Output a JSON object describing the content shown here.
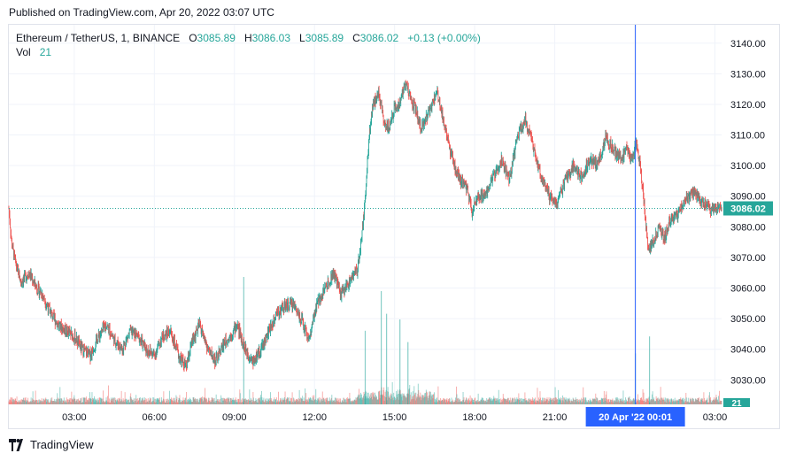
{
  "header": {
    "published": "Published on TradingView.com, Apr 20, 2022 03:07 UTC"
  },
  "legend": {
    "symbol": "Ethereum / TetherUS, 1, BINANCE",
    "o_label": "O",
    "o_value": "3085.89",
    "h_label": "H",
    "h_value": "3086.03",
    "l_label": "L",
    "l_value": "3085.89",
    "c_label": "C",
    "c_value": "3086.02",
    "change": "+0.13 (+0.00%)",
    "vol_label": "Vol",
    "vol_value": "21"
  },
  "footer": {
    "brand": "TradingView"
  },
  "colors": {
    "up": "#26a69a",
    "down": "#ef5350",
    "crosshair": "#2962ff",
    "grid": "#f0f3fa",
    "axis_text": "#131722"
  },
  "chart_data": {
    "type": "candlestick",
    "symbol": "ETHUSDT",
    "interval": "1",
    "exchange": "BINANCE",
    "y_ticks": [
      3030,
      3040,
      3050,
      3060,
      3070,
      3080,
      3090,
      3100,
      3110,
      3120,
      3130,
      3140
    ],
    "y_tick_labels": [
      "3030.00",
      "3040.00",
      "3050.00",
      "3060.00",
      "3070.00",
      "3080.00",
      "3090.00",
      "3100.00",
      "3110.00",
      "3120.00",
      "3130.00",
      "3140.00"
    ],
    "x_tick_labels": [
      "03:00",
      "06:00",
      "09:00",
      "12:00",
      "15:00",
      "18:00",
      "21:00",
      "00:01",
      "03:00"
    ],
    "x_tick_hours": [
      3,
      6,
      9,
      12,
      15,
      18,
      21,
      24,
      27
    ],
    "x_range_hours": [
      0.55,
      27.25
    ],
    "ylim": [
      3022,
      3146
    ],
    "crosshair_label": "20 Apr '22   00:01",
    "crosshair_hour": 24.02,
    "last_price": 3086.02,
    "last_price_label": "3086.02",
    "volume_label": "21",
    "price_path": [
      [
        0.55,
        3086
      ],
      [
        0.65,
        3075
      ],
      [
        0.8,
        3068
      ],
      [
        1.0,
        3062
      ],
      [
        1.3,
        3065
      ],
      [
        1.6,
        3060
      ],
      [
        1.8,
        3058
      ],
      [
        2.1,
        3052
      ],
      [
        2.4,
        3048
      ],
      [
        2.7,
        3046
      ],
      [
        3.0,
        3044
      ],
      [
        3.3,
        3040
      ],
      [
        3.6,
        3038
      ],
      [
        3.9,
        3044
      ],
      [
        4.2,
        3048
      ],
      [
        4.5,
        3043
      ],
      [
        4.8,
        3040
      ],
      [
        5.1,
        3046
      ],
      [
        5.4,
        3044
      ],
      [
        5.7,
        3040
      ],
      [
        6.0,
        3038
      ],
      [
        6.3,
        3044
      ],
      [
        6.6,
        3046
      ],
      [
        6.9,
        3038
      ],
      [
        7.2,
        3034
      ],
      [
        7.4,
        3042
      ],
      [
        7.7,
        3048
      ],
      [
        8.0,
        3040
      ],
      [
        8.3,
        3036
      ],
      [
        8.6,
        3042
      ],
      [
        8.9,
        3045
      ],
      [
        9.1,
        3048
      ],
      [
        9.4,
        3040
      ],
      [
        9.7,
        3036
      ],
      [
        10.0,
        3040
      ],
      [
        10.3,
        3046
      ],
      [
        10.6,
        3052
      ],
      [
        10.9,
        3054
      ],
      [
        11.2,
        3055
      ],
      [
        11.5,
        3050
      ],
      [
        11.8,
        3043
      ],
      [
        12.1,
        3055
      ],
      [
        12.4,
        3060
      ],
      [
        12.7,
        3065
      ],
      [
        13.0,
        3058
      ],
      [
        13.3,
        3062
      ],
      [
        13.6,
        3066
      ],
      [
        13.75,
        3075
      ],
      [
        13.9,
        3090
      ],
      [
        14.05,
        3110
      ],
      [
        14.2,
        3120
      ],
      [
        14.4,
        3124
      ],
      [
        14.6,
        3115
      ],
      [
        14.8,
        3112
      ],
      [
        15.0,
        3119
      ],
      [
        15.2,
        3120
      ],
      [
        15.4,
        3128
      ],
      [
        15.6,
        3122
      ],
      [
        15.8,
        3118
      ],
      [
        16.0,
        3112
      ],
      [
        16.3,
        3118
      ],
      [
        16.6,
        3124
      ],
      [
        16.9,
        3112
      ],
      [
        17.1,
        3104
      ],
      [
        17.4,
        3096
      ],
      [
        17.7,
        3093
      ],
      [
        17.9,
        3085
      ],
      [
        18.1,
        3089
      ],
      [
        18.4,
        3091
      ],
      [
        18.7,
        3096
      ],
      [
        19.0,
        3102
      ],
      [
        19.3,
        3095
      ],
      [
        19.6,
        3110
      ],
      [
        19.9,
        3115
      ],
      [
        20.2,
        3106
      ],
      [
        20.5,
        3096
      ],
      [
        20.8,
        3090
      ],
      [
        21.1,
        3088
      ],
      [
        21.4,
        3095
      ],
      [
        21.7,
        3100
      ],
      [
        22.0,
        3096
      ],
      [
        22.3,
        3102
      ],
      [
        22.6,
        3100
      ],
      [
        22.9,
        3109
      ],
      [
        23.2,
        3105
      ],
      [
        23.5,
        3102
      ],
      [
        23.7,
        3106
      ],
      [
        23.9,
        3102
      ],
      [
        24.05,
        3108
      ],
      [
        24.2,
        3100
      ],
      [
        24.35,
        3088
      ],
      [
        24.5,
        3072
      ],
      [
        24.7,
        3075
      ],
      [
        24.9,
        3080
      ],
      [
        25.1,
        3076
      ],
      [
        25.3,
        3082
      ],
      [
        25.6,
        3084
      ],
      [
        25.9,
        3089
      ],
      [
        26.2,
        3091
      ],
      [
        26.5,
        3088
      ],
      [
        26.8,
        3086
      ],
      [
        27.0,
        3086.02
      ]
    ],
    "volume_spikes": [
      [
        9.35,
        45
      ],
      [
        14.5,
        40
      ],
      [
        14.7,
        32
      ],
      [
        15.2,
        30
      ],
      [
        15.5,
        22
      ],
      [
        24.02,
        18
      ],
      [
        24.55,
        24
      ],
      [
        13.9,
        26
      ]
    ]
  }
}
